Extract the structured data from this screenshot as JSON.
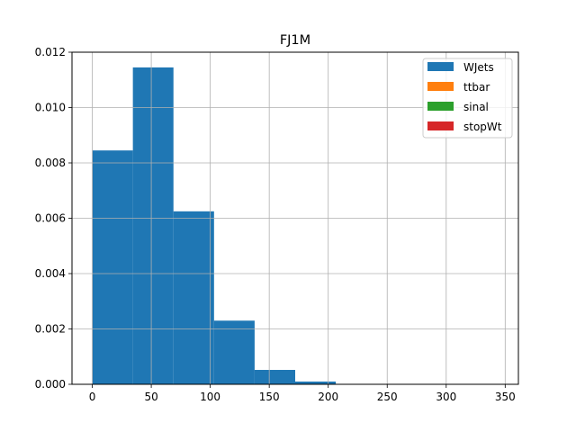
{
  "chart_data": {
    "type": "bar",
    "title": "FJ1M",
    "xlabel": "",
    "ylabel": "",
    "xlim": [
      -17.2,
      361.2
    ],
    "ylim": [
      0,
      0.012
    ],
    "grid": true,
    "legend_position": "top-right",
    "x_ticks": [
      0,
      50,
      100,
      150,
      200,
      250,
      300,
      350
    ],
    "x_tick_labels": [
      "0",
      "50",
      "100",
      "150",
      "200",
      "250",
      "300",
      "350"
    ],
    "y_ticks": [
      0.0,
      0.002,
      0.004,
      0.006,
      0.008,
      0.01,
      0.012
    ],
    "y_tick_labels": [
      "0.000",
      "0.002",
      "0.004",
      "0.006",
      "0.008",
      "0.010",
      "0.012"
    ],
    "bin_edges": [
      0,
      34.4,
      68.8,
      103.2,
      137.6,
      172.0,
      206.4,
      240.8,
      275.2,
      309.6,
      344.0
    ],
    "series": [
      {
        "name": "WJets",
        "color": "#1f77b4",
        "values": [
          0.00845,
          0.01145,
          0.00625,
          0.0023,
          0.00052,
          0.0001,
          0,
          0,
          0,
          0
        ]
      },
      {
        "name": "ttbar",
        "color": "#ff7f0e",
        "values": []
      },
      {
        "name": "sinal",
        "color": "#2ca02c",
        "values": []
      },
      {
        "name": "stopWt",
        "color": "#d62728",
        "values": []
      }
    ]
  }
}
